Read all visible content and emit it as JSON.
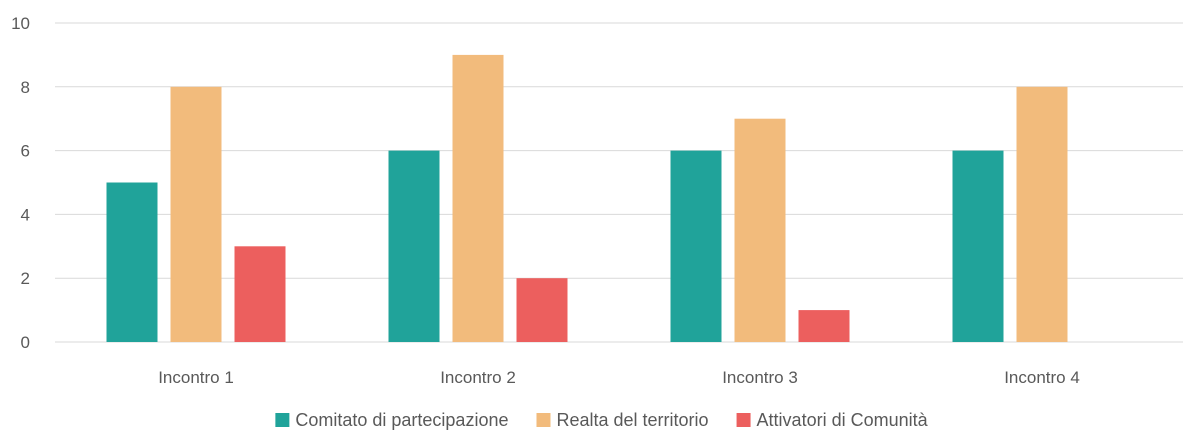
{
  "chart_data": {
    "type": "bar",
    "title": "",
    "xlabel": "",
    "ylabel": "",
    "categories": [
      "Incontro 1",
      "Incontro 2",
      "Incontro 3",
      "Incontro 4"
    ],
    "series": [
      {
        "name": "Comitato di partecipazione",
        "values": [
          5,
          6,
          6,
          6
        ],
        "color": "#20a39a"
      },
      {
        "name": "Realta del territorio",
        "values": [
          8,
          9,
          7,
          8
        ],
        "color": "#f2bb7c"
      },
      {
        "name": "Attivatori di Comunità",
        "values": [
          3,
          2,
          1,
          0
        ],
        "color": "#ec5f5e"
      }
    ],
    "ylim": [
      0,
      10
    ],
    "yticks": [
      0,
      2,
      4,
      6,
      8,
      10
    ],
    "grid": true,
    "legend": "bottom"
  }
}
